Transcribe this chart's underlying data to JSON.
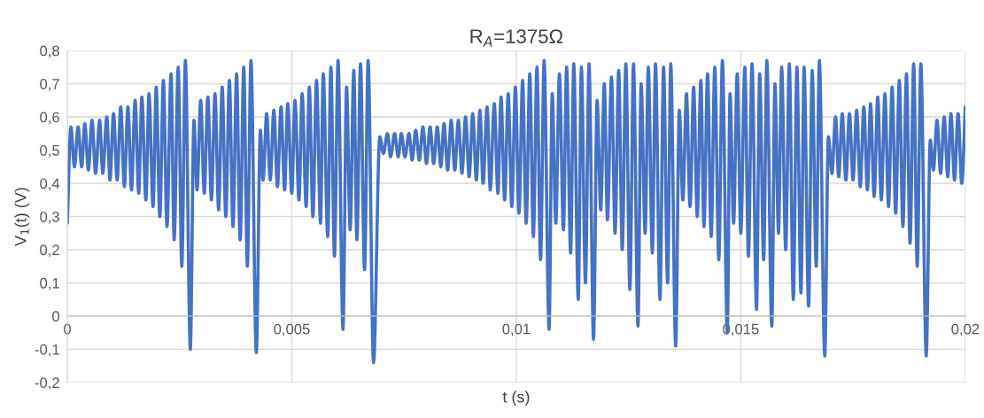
{
  "chart_data": {
    "type": "line",
    "title": "R$_{A}$=1375Ω",
    "xlabel": "t (s)",
    "ylabel": "V$_{1}$(t) (V)",
    "xlim": [
      0,
      0.02
    ],
    "ylim": [
      -0.2,
      0.8
    ],
    "xticks": [
      0,
      {
        "value": 0.005,
        "label": "0,005"
      },
      {
        "value": 0.01,
        "label": "0,01"
      },
      {
        "value": 0.015,
        "label": "0,015"
      },
      {
        "value": 0.02,
        "label": "0,02"
      }
    ],
    "yticks": [
      {
        "value": -0.2,
        "label": "-0,2"
      },
      {
        "value": -0.1,
        "label": "-0,1"
      },
      0,
      {
        "value": 0.1,
        "label": "0,1"
      },
      {
        "value": 0.2,
        "label": "0,2"
      },
      {
        "value": 0.3,
        "label": "0,3"
      },
      {
        "value": 0.4,
        "label": "0,4"
      },
      {
        "value": 0.5,
        "label": "0,5"
      },
      {
        "value": 0.6,
        "label": "0,6"
      },
      {
        "value": 0.7,
        "label": "0,7"
      },
      {
        "value": 0.8,
        "label": "0,8"
      }
    ],
    "grid": true,
    "x": [
      0,
      8e-05,
      0.00016,
      0.00024,
      0.00032,
      0.00039,
      0.00047,
      0.00055,
      0.00063,
      0.00072,
      0.00079,
      0.00088,
      0.00095,
      0.00103,
      0.00111,
      0.00119,
      0.00127,
      0.00135,
      0.00143,
      0.00151,
      0.00159,
      0.00166,
      0.00175,
      0.00182,
      0.00191,
      0.00198,
      0.00206,
      0.00214,
      0.00222,
      0.00231,
      0.00238,
      0.00247,
      0.00255,
      0.00263,
      0.00274,
      0.00282,
      0.00289,
      0.00297,
      0.00305,
      0.00313,
      0.00321,
      0.00329,
      0.00337,
      0.00345,
      0.00353,
      0.00361,
      0.00369,
      0.00377,
      0.00385,
      0.00393,
      0.00401,
      0.00409,
      0.00421,
      0.0043,
      0.00436,
      0.00444,
      0.00452,
      0.0046,
      0.00468,
      0.00476,
      0.00484,
      0.00491,
      0.005,
      0.00507,
      0.00516,
      0.00523,
      0.00532,
      0.00539,
      0.00547,
      0.00555,
      0.00564,
      0.0057,
      0.0058,
      0.00587,
      0.00595,
      0.00603,
      0.00614,
      0.00622,
      0.0063,
      0.00638,
      0.00645,
      0.00653,
      0.00662,
      0.0067,
      0.00682,
      0.00696,
      0.00704,
      0.00713,
      0.0072,
      0.00729,
      0.00737,
      0.00744,
      0.00752,
      0.00761,
      0.00768,
      0.00776,
      0.00784,
      0.00792,
      0.008,
      0.00808,
      0.00816,
      0.00824,
      0.00832,
      0.00839,
      0.00847,
      0.00855,
      0.00863,
      0.00871,
      0.00879,
      0.00887,
      0.00895,
      0.00903,
      0.00911,
      0.00919,
      0.00926,
      0.00935,
      0.00942,
      0.00951,
      0.00959,
      0.00966,
      0.00974,
      0.00982,
      0.0099,
      0.00998,
      0.01006,
      0.01014,
      0.01022,
      0.0103,
      0.01038,
      0.01046,
      0.01054,
      0.01062,
      0.01073,
      0.0108,
      0.01088,
      0.01096,
      0.01105,
      0.01112,
      0.01121,
      0.01128,
      0.01138,
      0.01145,
      0.01154,
      0.01162,
      0.01172,
      0.0118,
      0.01188,
      0.01196,
      0.01203,
      0.01212,
      0.0122,
      0.01228,
      0.01236,
      0.01244,
      0.01253,
      0.01261,
      0.01271,
      0.01278,
      0.01287,
      0.01294,
      0.01303,
      0.0131,
      0.0132,
      0.01328,
      0.01337,
      0.01344,
      0.01355,
      0.01363,
      0.01371,
      0.01379,
      0.01387,
      0.01395,
      0.01403,
      0.01411,
      0.01418,
      0.01426,
      0.01434,
      0.01442,
      0.01451,
      0.01459,
      0.0147,
      0.01476,
      0.01484,
      0.01492,
      0.015,
      0.01509,
      0.01517,
      0.01525,
      0.01535,
      0.01542,
      0.01551,
      0.01558,
      0.01569,
      0.01576,
      0.01584,
      0.01591,
      0.016,
      0.01608,
      0.01617,
      0.01625,
      0.01634,
      0.01641,
      0.01651,
      0.01659,
      0.01668,
      0.01675,
      0.01687,
      0.01695,
      0.01703,
      0.01711,
      0.01718,
      0.01726,
      0.01734,
      0.01742,
      0.0175,
      0.01758,
      0.01766,
      0.01774,
      0.01782,
      0.01789,
      0.01797,
      0.01805,
      0.01813,
      0.01821,
      0.01829,
      0.01837,
      0.01845,
      0.01853,
      0.01861,
      0.01869,
      0.01877,
      0.01885,
      0.01893,
      0.01901,
      0.01913,
      0.01922,
      0.01929,
      0.01937,
      0.01945,
      0.01953,
      0.01961,
      0.01968,
      0.01976,
      0.01984,
      0.01992,
      0.02
    ],
    "series": [
      {
        "color": "#4472c4",
        "values": [
          0.28,
          0.57,
          0.45,
          0.57,
          0.45,
          0.58,
          0.44,
          0.59,
          0.43,
          0.59,
          0.43,
          0.6,
          0.41,
          0.61,
          0.41,
          0.63,
          0.39,
          0.63,
          0.38,
          0.65,
          0.37,
          0.66,
          0.35,
          0.67,
          0.33,
          0.69,
          0.3,
          0.71,
          0.27,
          0.73,
          0.23,
          0.75,
          0.15,
          0.77,
          -0.1,
          0.59,
          0.38,
          0.65,
          0.37,
          0.66,
          0.35,
          0.67,
          0.32,
          0.69,
          0.3,
          0.71,
          0.27,
          0.73,
          0.23,
          0.75,
          0.15,
          0.77,
          -0.11,
          0.56,
          0.41,
          0.61,
          0.41,
          0.62,
          0.39,
          0.63,
          0.38,
          0.64,
          0.37,
          0.65,
          0.35,
          0.67,
          0.33,
          0.69,
          0.3,
          0.71,
          0.28,
          0.73,
          0.24,
          0.75,
          0.18,
          0.77,
          -0.04,
          0.69,
          0.26,
          0.74,
          0.23,
          0.76,
          0.14,
          0.77,
          -0.14,
          0.54,
          0.49,
          0.55,
          0.48,
          0.55,
          0.48,
          0.55,
          0.48,
          0.55,
          0.47,
          0.56,
          0.47,
          0.57,
          0.46,
          0.57,
          0.46,
          0.57,
          0.45,
          0.58,
          0.44,
          0.59,
          0.44,
          0.59,
          0.43,
          0.6,
          0.42,
          0.61,
          0.41,
          0.62,
          0.4,
          0.63,
          0.38,
          0.64,
          0.37,
          0.66,
          0.35,
          0.67,
          0.33,
          0.69,
          0.31,
          0.71,
          0.28,
          0.73,
          0.24,
          0.75,
          0.17,
          0.77,
          -0.04,
          0.67,
          0.28,
          0.73,
          0.26,
          0.75,
          0.19,
          0.76,
          0.05,
          0.75,
          0.1,
          0.76,
          -0.07,
          0.65,
          0.32,
          0.7,
          0.29,
          0.72,
          0.25,
          0.74,
          0.2,
          0.76,
          0.08,
          0.76,
          -0.03,
          0.7,
          0.25,
          0.75,
          0.19,
          0.76,
          0.05,
          0.75,
          0.1,
          0.76,
          -0.09,
          0.62,
          0.35,
          0.67,
          0.33,
          0.69,
          0.3,
          0.71,
          0.27,
          0.73,
          0.24,
          0.75,
          0.17,
          0.77,
          -0.05,
          0.67,
          0.28,
          0.73,
          0.25,
          0.75,
          0.18,
          0.76,
          0.02,
          0.73,
          0.17,
          0.77,
          -0.03,
          0.7,
          0.25,
          0.75,
          0.2,
          0.76,
          0.05,
          0.75,
          0.07,
          0.75,
          0.03,
          0.74,
          0.15,
          0.77,
          -0.12,
          0.54,
          0.43,
          0.6,
          0.42,
          0.61,
          0.41,
          0.61,
          0.41,
          0.62,
          0.39,
          0.63,
          0.38,
          0.64,
          0.36,
          0.66,
          0.35,
          0.67,
          0.33,
          0.69,
          0.31,
          0.71,
          0.27,
          0.73,
          0.22,
          0.76,
          0.15,
          0.76,
          -0.12,
          0.53,
          0.44,
          0.59,
          0.43,
          0.6,
          0.42,
          0.61,
          0.41,
          0.61,
          0.4,
          0.63
        ]
      }
    ]
  }
}
